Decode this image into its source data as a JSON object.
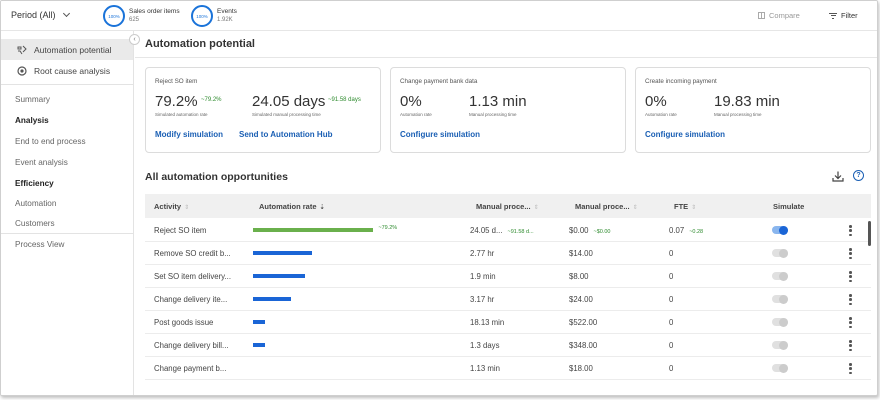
{
  "topbar": {
    "period_label": "Period (All)",
    "metrics": [
      {
        "ring": "100%",
        "label": "Sales order items",
        "value": "625"
      },
      {
        "ring": "100%",
        "label": "Events",
        "value": "1.92K"
      }
    ],
    "compare_label": "Compare",
    "filter_label": "Filter"
  },
  "sidebar": {
    "nav_items": [
      {
        "label": "Automation potential",
        "icon": "automation-icon",
        "active": true
      },
      {
        "label": "Root cause analysis",
        "icon": "root-cause-icon",
        "active": false
      }
    ],
    "links": [
      {
        "label": "Summary",
        "bold": false
      },
      {
        "label": "Analysis",
        "bold": true
      },
      {
        "label": "End to end process",
        "bold": false
      },
      {
        "label": "Event analysis",
        "bold": false
      },
      {
        "label": "Efficiency",
        "bold": true
      },
      {
        "label": "Automation",
        "bold": false
      },
      {
        "label": "Customers",
        "bold": false
      },
      {
        "label": "Process View",
        "bold": false
      }
    ]
  },
  "main": {
    "title": "Automation potential",
    "cards": [
      {
        "title": "Reject SO item",
        "rate": "79.2%",
        "rate_delta": "~79.2%",
        "time": "24.05 days",
        "time_delta": "~91.58 days",
        "rate_sub": "Simulated automation rate",
        "time_sub": "Simulated manual processing time",
        "actions": [
          "Modify simulation",
          "Send to Automation Hub"
        ]
      },
      {
        "title": "Change payment bank data",
        "rate": "0%",
        "time": "1.13 min",
        "rate_sub": "Automation rate",
        "time_sub": "Manual processing time",
        "actions": [
          "Configure simulation"
        ]
      },
      {
        "title": "Create incoming payment",
        "rate": "0%",
        "time": "19.83 min",
        "rate_sub": "Automation rate",
        "time_sub": "Manual processing time",
        "actions": [
          "Configure simulation"
        ]
      }
    ],
    "opportunities_title": "All automation opportunities",
    "table": {
      "columns": [
        "Activity",
        "Automation rate",
        "Manual proce...",
        "Manual proce...",
        "FTE",
        "Simulate"
      ],
      "rows": [
        {
          "activity": "Reject SO item",
          "rate_fraction": 0.792,
          "rate_label": "~79.2%",
          "bar_color": "#6ab04c",
          "time": "24.05 d...",
          "time_delta": "~91.58 d...",
          "cost": "$0.00",
          "cost_delta": "~$0.00",
          "fte": "0.07",
          "fte_delta": "~0.28",
          "simulate": true
        },
        {
          "activity": "Remove SO credit b...",
          "rate_fraction": 0.39,
          "rate_label": "",
          "bar_color": "#1a65d6",
          "time": "2.77 hr",
          "time_delta": "",
          "cost": "$14.00",
          "cost_delta": "",
          "fte": "0",
          "fte_delta": "",
          "simulate": false
        },
        {
          "activity": "Set SO item delivery...",
          "rate_fraction": 0.34,
          "rate_label": "",
          "bar_color": "#1a65d6",
          "time": "1.9 min",
          "time_delta": "",
          "cost": "$8.00",
          "cost_delta": "",
          "fte": "0",
          "fte_delta": "",
          "simulate": false
        },
        {
          "activity": "Change delivery ite...",
          "rate_fraction": 0.25,
          "rate_label": "",
          "bar_color": "#1a65d6",
          "time": "3.17 hr",
          "time_delta": "",
          "cost": "$24.00",
          "cost_delta": "",
          "fte": "0",
          "fte_delta": "",
          "simulate": false
        },
        {
          "activity": "Post goods issue",
          "rate_fraction": 0.08,
          "rate_label": "",
          "bar_color": "#1a65d6",
          "time": "18.13 min",
          "time_delta": "",
          "cost": "$522.00",
          "cost_delta": "",
          "fte": "0",
          "fte_delta": "",
          "simulate": false
        },
        {
          "activity": "Change delivery bill...",
          "rate_fraction": 0.08,
          "rate_label": "",
          "bar_color": "#1a65d6",
          "time": "1.3 days",
          "time_delta": "",
          "cost": "$348.00",
          "cost_delta": "",
          "fte": "0",
          "fte_delta": "",
          "simulate": false
        },
        {
          "activity": "Change payment b...",
          "rate_fraction": 0,
          "rate_label": "",
          "bar_color": "#1a65d6",
          "time": "1.13 min",
          "time_delta": "",
          "cost": "$18.00",
          "cost_delta": "",
          "fte": "0",
          "fte_delta": "",
          "simulate": false
        }
      ]
    }
  }
}
